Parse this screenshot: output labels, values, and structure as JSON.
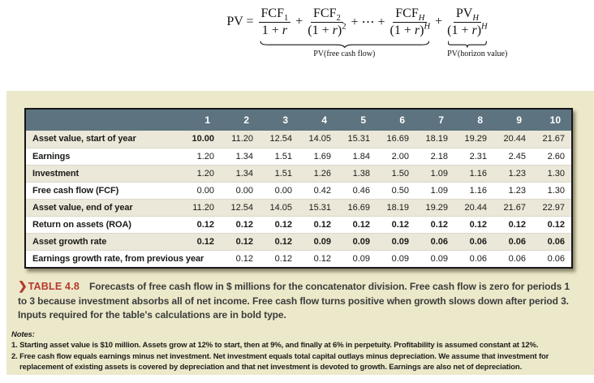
{
  "formula": {
    "lhs": "PV",
    "equals": "=",
    "t1": {
      "num_base": "FCF",
      "num_sub": "1",
      "den_open": "1 + ",
      "den_var": "r",
      "den_close": "",
      "den_sup": ""
    },
    "op1": "+",
    "t2": {
      "num_base": "FCF",
      "num_sub": "2",
      "den_open": "(1 + ",
      "den_var": "r",
      "den_close": ")",
      "den_sup": "2"
    },
    "op2": "+ ⋯ +",
    "t3": {
      "num_base": "FCF",
      "num_sub": "H",
      "den_open": "(1 + ",
      "den_var": "r",
      "den_close": ")",
      "den_sup": "H"
    },
    "op3": "+",
    "t4": {
      "num_base": "PV",
      "num_sub": "H",
      "den_open": "(1 + ",
      "den_var": "r",
      "den_close": ")",
      "den_sup": "H"
    },
    "brace_fcf_label": "PV(free cash flow)",
    "brace_horizon_label": "PV(horizon value)"
  },
  "table": {
    "columns": [
      "1",
      "2",
      "3",
      "4",
      "5",
      "6",
      "7",
      "8",
      "9",
      "10"
    ],
    "rows": [
      {
        "label": "Asset value, start of year",
        "bold": "first",
        "values": [
          "10.00",
          "11.20",
          "12.54",
          "14.05",
          "15.31",
          "16.69",
          "18.19",
          "19.29",
          "20.44",
          "21.67"
        ]
      },
      {
        "label": "Earnings",
        "bold": "none",
        "values": [
          "1.20",
          "1.34",
          "1.51",
          "1.69",
          "1.84",
          "2.00",
          "2.18",
          "2.31",
          "2.45",
          "2.60"
        ]
      },
      {
        "label": "Investment",
        "bold": "none",
        "values": [
          "1.20",
          "1.34",
          "1.51",
          "1.26",
          "1.38",
          "1.50",
          "1.09",
          "1.16",
          "1.23",
          "1.30"
        ]
      },
      {
        "label": "Free cash flow (FCF)",
        "bold": "none",
        "values": [
          "0.00",
          "0.00",
          "0.00",
          "0.42",
          "0.46",
          "0.50",
          "1.09",
          "1.16",
          "1.23",
          "1.30"
        ]
      },
      {
        "label": "Asset value, end of year",
        "bold": "none",
        "values": [
          "11.20",
          "12.54",
          "14.05",
          "15.31",
          "16.69",
          "18.19",
          "19.29",
          "20.44",
          "21.67",
          "22.97"
        ]
      },
      {
        "label": "Return on assets (ROA)",
        "bold": "all",
        "values": [
          "0.12",
          "0.12",
          "0.12",
          "0.12",
          "0.12",
          "0.12",
          "0.12",
          "0.12",
          "0.12",
          "0.12"
        ]
      },
      {
        "label": "Asset growth rate",
        "bold": "all",
        "values": [
          "0.12",
          "0.12",
          "0.12",
          "0.09",
          "0.09",
          "0.09",
          "0.06",
          "0.06",
          "0.06",
          "0.06"
        ]
      },
      {
        "label": "Earnings growth rate, from previous year",
        "bold": "none",
        "values": [
          "",
          "0.12",
          "0.12",
          "0.12",
          "0.09",
          "0.09",
          "0.09",
          "0.06",
          "0.06",
          "0.06"
        ]
      }
    ]
  },
  "caption": {
    "marker": "❯",
    "label": "TABLE 4.8",
    "text": "Forecasts of free cash flow in $ millions for the concatenator division. Free cash flow is zero for periods 1 to 3 because investment absorbs all of net income. Free cash flow turns positive when growth slows down after period 3. Inputs required for the table's calculations are in bold type."
  },
  "notes": {
    "title": "Notes:",
    "items": [
      "1. Starting asset value is $10 million. Assets grow at 12% to start, then at 9%, and finally at 6% in perpetuity. Profitability is assumed constant at 12%.",
      "2. Free cash flow equals earnings minus net investment. Net investment equals total capital outlays minus depreciation. We assume that investment for replacement of existing assets is covered by depreciation and that net investment is devoted to growth. Earnings are also net of depreciation."
    ]
  },
  "colors": {
    "panel_bg": "#ece9ca",
    "table_header_bg": "#5d7480",
    "row_alt_bg": "#ebe8d9",
    "accent_red": "#b8392e",
    "text_dark": "#1c1a18"
  }
}
